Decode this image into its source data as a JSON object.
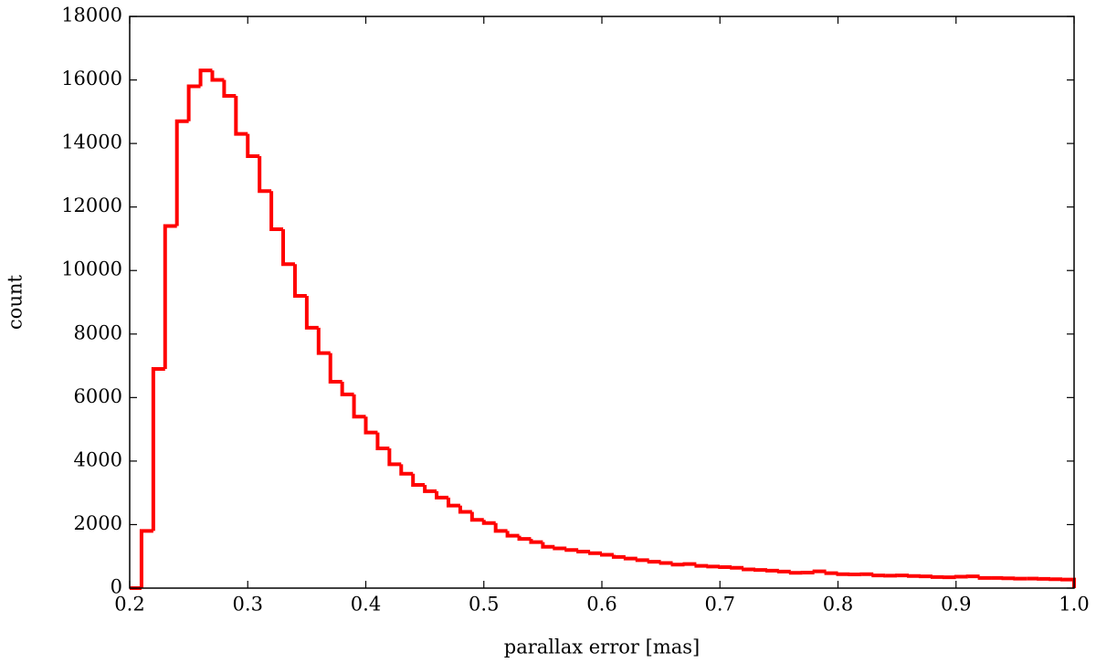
{
  "chart_data": {
    "type": "histogram",
    "xlabel": "parallax error [mas]",
    "ylabel": "count",
    "color": "#ff0000",
    "bins": [
      0.2,
      0.21,
      0.22,
      0.23,
      0.24,
      0.25,
      0.26,
      0.27,
      0.28,
      0.29,
      0.3,
      0.31,
      0.32,
      0.33,
      0.34,
      0.35,
      0.36,
      0.37,
      0.38,
      0.39,
      0.4,
      0.41,
      0.42,
      0.43,
      0.44,
      0.45,
      0.46,
      0.47,
      0.48,
      0.49,
      0.5,
      0.51,
      0.52,
      0.53,
      0.54,
      0.55,
      0.56,
      0.57,
      0.58,
      0.59,
      0.6,
      0.61,
      0.62,
      0.63,
      0.64,
      0.65,
      0.66,
      0.67,
      0.68,
      0.69,
      0.7,
      0.71,
      0.72,
      0.73,
      0.74,
      0.75,
      0.76,
      0.77,
      0.78,
      0.79,
      0.8,
      0.81,
      0.82,
      0.83,
      0.84,
      0.85,
      0.86,
      0.87,
      0.88,
      0.89,
      0.9,
      0.91,
      0.92,
      0.93,
      0.94,
      0.95,
      0.96,
      0.97,
      0.98,
      0.99,
      1.0
    ],
    "counts": [
      0,
      1800,
      6900,
      11400,
      14700,
      15800,
      16300,
      16000,
      15500,
      14300,
      13600,
      12500,
      11300,
      10200,
      9200,
      8200,
      7400,
      6500,
      6100,
      5400,
      4900,
      4400,
      3900,
      3600,
      3250,
      3050,
      2850,
      2600,
      2400,
      2150,
      2050,
      1800,
      1650,
      1550,
      1450,
      1300,
      1250,
      1200,
      1150,
      1100,
      1050,
      980,
      930,
      880,
      830,
      790,
      740,
      760,
      700,
      680,
      660,
      640,
      590,
      570,
      550,
      520,
      480,
      490,
      530,
      470,
      440,
      430,
      440,
      400,
      390,
      400,
      380,
      370,
      350,
      340,
      360,
      370,
      320,
      320,
      310,
      300,
      300,
      290,
      280,
      270
    ],
    "xlim": [
      0.2,
      1.0
    ],
    "ylim": [
      0,
      18000
    ],
    "xticks": [
      0.2,
      0.3,
      0.4,
      0.5,
      0.6,
      0.7,
      0.8,
      0.9,
      {
        "value": 1.0,
        "label": "1.0"
      }
    ],
    "yticks": [
      0,
      2000,
      4000,
      6000,
      8000,
      10000,
      12000,
      14000,
      16000,
      18000
    ]
  }
}
